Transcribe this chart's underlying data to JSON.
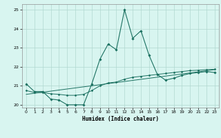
{
  "xlabel": "Humidex (Indice chaleur)",
  "ylabel": "",
  "bg_color": "#d8f5f0",
  "line_color": "#1a7060",
  "grid_color": "#b0d8d0",
  "xlim": [
    -0.5,
    23.5
  ],
  "ylim": [
    19.85,
    25.3
  ],
  "yticks": [
    20,
    21,
    22,
    23,
    24,
    25
  ],
  "xticks": [
    0,
    1,
    2,
    3,
    4,
    5,
    6,
    7,
    8,
    9,
    10,
    11,
    12,
    13,
    14,
    15,
    16,
    17,
    18,
    19,
    20,
    21,
    22,
    23
  ],
  "curve1_x": [
    0,
    1,
    2,
    3,
    4,
    5,
    6,
    7,
    8,
    9,
    10,
    11,
    12,
    13,
    14,
    15,
    16,
    17,
    18,
    19,
    20,
    21,
    22,
    23
  ],
  "curve1_y": [
    21.1,
    20.7,
    20.7,
    20.3,
    20.25,
    20.0,
    20.0,
    20.0,
    21.1,
    22.4,
    23.2,
    22.9,
    25.0,
    23.5,
    23.9,
    22.6,
    21.6,
    21.3,
    21.4,
    21.55,
    21.65,
    21.7,
    21.75,
    21.7
  ],
  "curve2_x": [
    0,
    1,
    2,
    3,
    4,
    5,
    6,
    7,
    8,
    9,
    10,
    11,
    12,
    13,
    14,
    15,
    16,
    17,
    18,
    19,
    20,
    21,
    22,
    23
  ],
  "curve2_y": [
    20.75,
    20.65,
    20.65,
    20.58,
    20.55,
    20.5,
    20.5,
    20.55,
    20.75,
    21.0,
    21.15,
    21.2,
    21.35,
    21.45,
    21.5,
    21.55,
    21.6,
    21.65,
    21.7,
    21.75,
    21.8,
    21.82,
    21.85,
    21.87
  ],
  "curve3_x": [
    0,
    23
  ],
  "curve3_y": [
    20.55,
    21.85
  ]
}
